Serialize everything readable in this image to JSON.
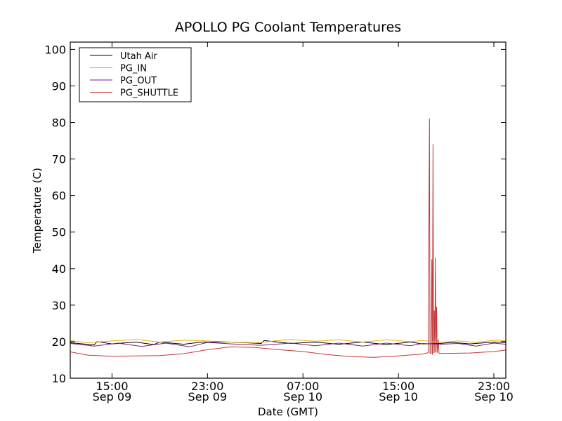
{
  "chart_data": {
    "type": "line",
    "title": "APOLLO PG Coolant Temperatures",
    "xlabel": "Date (GMT)",
    "ylabel": "Temperature (C)",
    "x_start": "2013-09-09T11:30",
    "x_end": "2013-09-11T00:00",
    "xlim_hours": [
      0,
      36.5
    ],
    "ylim": [
      10,
      102
    ],
    "y_ticks": [
      10,
      20,
      30,
      40,
      50,
      60,
      70,
      80,
      90,
      100
    ],
    "x_ticks": [
      {
        "at": "2013-09-09T15:00",
        "time": "15:00",
        "date": "Sep 09"
      },
      {
        "at": "2013-09-09T23:00",
        "time": "23:00",
        "date": "Sep 09"
      },
      {
        "at": "2013-09-10T07:00",
        "time": "07:00",
        "date": "Sep 10"
      },
      {
        "at": "2013-09-10T15:00",
        "time": "15:00",
        "date": "Sep 10"
      },
      {
        "at": "2013-09-10T23:00",
        "time": "23:00",
        "date": "Sep 10"
      }
    ],
    "grid": false,
    "legend_position": "top-left",
    "series": [
      {
        "name": "Utah Air",
        "color": "#000000",
        "points": [
          [
            "2013-09-09T11:30",
            19.7
          ],
          [
            "2013-09-09T13:30",
            19.1
          ],
          [
            "2013-09-09T13:45",
            20.0
          ],
          [
            "2013-09-09T15:00",
            19.4
          ],
          [
            "2013-09-09T17:00",
            19.9
          ],
          [
            "2013-09-09T18:30",
            19.2
          ],
          [
            "2013-09-09T19:00",
            19.9
          ],
          [
            "2013-09-09T21:00",
            19.3
          ],
          [
            "2013-09-09T22:30",
            19.9
          ],
          [
            "2013-09-10T01:00",
            19.9
          ],
          [
            "2013-09-10T03:30",
            19.5
          ],
          [
            "2013-09-10T03:45",
            20.3
          ],
          [
            "2013-09-10T06:00",
            19.5
          ],
          [
            "2013-09-10T08:00",
            19.9
          ],
          [
            "2013-09-10T10:00",
            19.3
          ],
          [
            "2013-09-10T12:00",
            19.9
          ],
          [
            "2013-09-10T14:00",
            19.2
          ],
          [
            "2013-09-10T16:00",
            19.9
          ],
          [
            "2013-09-10T17:00",
            19.4
          ],
          [
            "2013-09-10T18:30",
            19.5
          ],
          [
            "2013-09-10T19:30",
            19.8
          ],
          [
            "2013-09-10T21:00",
            19.4
          ],
          [
            "2013-09-10T23:00",
            19.9
          ],
          [
            "2013-09-11T00:00",
            19.8
          ]
        ]
      },
      {
        "name": "PG_IN",
        "color": "#e8b400",
        "points": [
          [
            "2013-09-09T11:30",
            20.3
          ],
          [
            "2013-09-09T13:00",
            19.7
          ],
          [
            "2013-09-09T15:00",
            20.2
          ],
          [
            "2013-09-09T17:00",
            20.6
          ],
          [
            "2013-09-09T19:00",
            19.9
          ],
          [
            "2013-09-09T21:00",
            20.4
          ],
          [
            "2013-09-09T23:00",
            20.2
          ],
          [
            "2013-09-10T01:00",
            19.9
          ],
          [
            "2013-09-10T03:00",
            19.7
          ],
          [
            "2013-09-10T06:00",
            20.6
          ],
          [
            "2013-09-10T08:00",
            20.1
          ],
          [
            "2013-09-10T10:00",
            20.5
          ],
          [
            "2013-09-10T12:00",
            19.9
          ],
          [
            "2013-09-10T14:00",
            20.5
          ],
          [
            "2013-09-10T16:00",
            20.0
          ],
          [
            "2013-09-10T17:00",
            20.3
          ],
          [
            "2013-09-10T18:30",
            19.8
          ],
          [
            "2013-09-10T20:00",
            20.2
          ],
          [
            "2013-09-10T21:30",
            19.8
          ],
          [
            "2013-09-10T23:00",
            20.4
          ],
          [
            "2013-09-11T00:00",
            20.3
          ]
        ]
      },
      {
        "name": "PG_OUT",
        "color": "#7a1c8c",
        "points": [
          [
            "2013-09-09T11:30",
            19.5
          ],
          [
            "2013-09-09T13:30",
            18.8
          ],
          [
            "2013-09-09T15:30",
            19.6
          ],
          [
            "2013-09-09T17:30",
            18.7
          ],
          [
            "2013-09-09T19:30",
            19.6
          ],
          [
            "2013-09-09T21:30",
            18.6
          ],
          [
            "2013-09-09T23:00",
            19.8
          ],
          [
            "2013-09-10T01:00",
            19.4
          ],
          [
            "2013-09-10T03:30",
            19.0
          ],
          [
            "2013-09-10T06:00",
            19.6
          ],
          [
            "2013-09-10T08:00",
            18.9
          ],
          [
            "2013-09-10T10:00",
            19.6
          ],
          [
            "2013-09-10T12:00",
            18.8
          ],
          [
            "2013-09-10T14:00",
            19.6
          ],
          [
            "2013-09-10T16:00",
            18.9
          ],
          [
            "2013-09-10T17:00",
            19.5
          ],
          [
            "2013-09-10T18:30",
            19.3
          ],
          [
            "2013-09-10T20:00",
            19.5
          ],
          [
            "2013-09-10T21:30",
            18.8
          ],
          [
            "2013-09-10T23:00",
            19.6
          ],
          [
            "2013-09-11T00:00",
            19.3
          ]
        ]
      },
      {
        "name": "PG_SHUTTLE",
        "color": "#c0393b",
        "points": [
          [
            "2013-09-09T11:30",
            17.2
          ],
          [
            "2013-09-09T13:00",
            16.3
          ],
          [
            "2013-09-09T15:00",
            16.0
          ],
          [
            "2013-09-09T19:00",
            16.2
          ],
          [
            "2013-09-09T21:00",
            16.7
          ],
          [
            "2013-09-09T23:00",
            17.8
          ],
          [
            "2013-09-10T01:00",
            18.6
          ],
          [
            "2013-09-10T03:00",
            18.4
          ],
          [
            "2013-09-10T05:00",
            17.8
          ],
          [
            "2013-09-10T07:00",
            17.3
          ],
          [
            "2013-09-10T09:00",
            16.5
          ],
          [
            "2013-09-10T11:00",
            15.9
          ],
          [
            "2013-09-10T13:00",
            15.7
          ],
          [
            "2013-09-10T15:00",
            16.1
          ],
          [
            "2013-09-10T17:00",
            16.6
          ],
          [
            "2013-09-10T17:30",
            17.0
          ],
          [
            "2013-09-10T17:36",
            81.0
          ],
          [
            "2013-09-10T17:39",
            16.8
          ],
          [
            "2013-09-10T17:45",
            16.8
          ],
          [
            "2013-09-10T17:48",
            42.5
          ],
          [
            "2013-09-10T17:51",
            16.5
          ],
          [
            "2013-09-10T17:54",
            74.0
          ],
          [
            "2013-09-10T17:57",
            17.0
          ],
          [
            "2013-09-10T18:00",
            28.5
          ],
          [
            "2013-09-10T18:03",
            17.0
          ],
          [
            "2013-09-10T18:06",
            43.0
          ],
          [
            "2013-09-10T18:09",
            17.2
          ],
          [
            "2013-09-10T18:12",
            29.5
          ],
          [
            "2013-09-10T18:15",
            17.0
          ],
          [
            "2013-09-10T18:21",
            20.5
          ],
          [
            "2013-09-10T18:24",
            16.8
          ],
          [
            "2013-09-10T19:00",
            16.8
          ],
          [
            "2013-09-10T21:00",
            16.9
          ],
          [
            "2013-09-10T23:00",
            17.3
          ],
          [
            "2013-09-11T00:00",
            17.7
          ]
        ]
      }
    ]
  }
}
